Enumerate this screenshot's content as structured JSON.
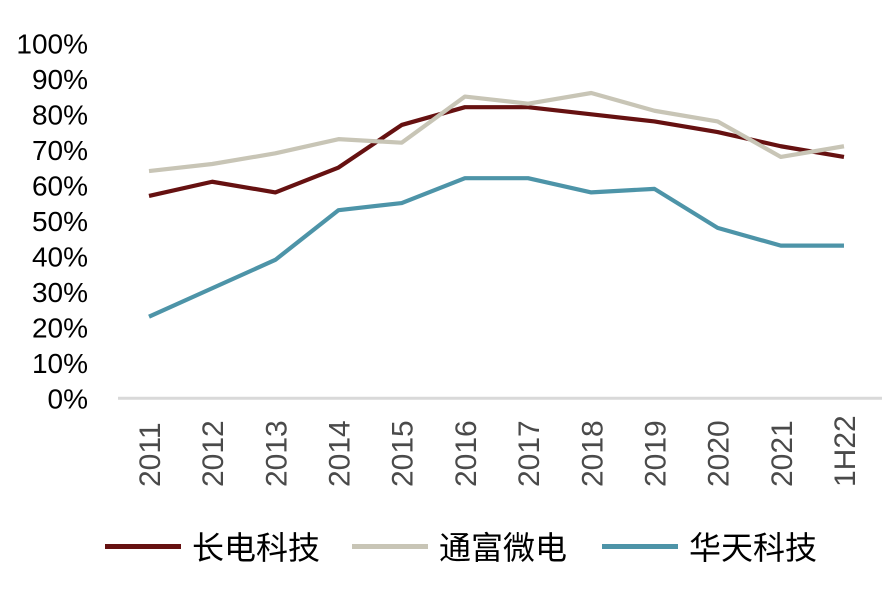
{
  "chart_data": {
    "type": "line",
    "title": "",
    "xlabel": "",
    "ylabel": "",
    "categories": [
      "2011",
      "2012",
      "2013",
      "2014",
      "2015",
      "2016",
      "2017",
      "2018",
      "2019",
      "2020",
      "2021",
      "1H22"
    ],
    "series": [
      {
        "name": "长电科技",
        "color": "#661111",
        "values": [
          57,
          61,
          58,
          65,
          77,
          82,
          82,
          80,
          78,
          75,
          71,
          68
        ]
      },
      {
        "name": "通富微电",
        "color": "#c8c5b6",
        "values": [
          64,
          66,
          69,
          73,
          72,
          85,
          83,
          86,
          81,
          78,
          68,
          71
        ]
      },
      {
        "name": "华天科技",
        "color": "#4d94a8",
        "values": [
          23,
          31,
          39,
          53,
          55,
          62,
          62,
          58,
          59,
          48,
          43,
          43
        ]
      }
    ],
    "y_ticks": [
      "0%",
      "10%",
      "20%",
      "30%",
      "40%",
      "50%",
      "60%",
      "70%",
      "80%",
      "90%",
      "100%"
    ],
    "ylim": [
      0,
      100
    ],
    "y_step": 10,
    "grid": false,
    "legend_position": "bottom",
    "axis_line_color": "#d9d9d9",
    "y_tick_color": "#000000",
    "x_tick_color": "#4a4a4a"
  }
}
